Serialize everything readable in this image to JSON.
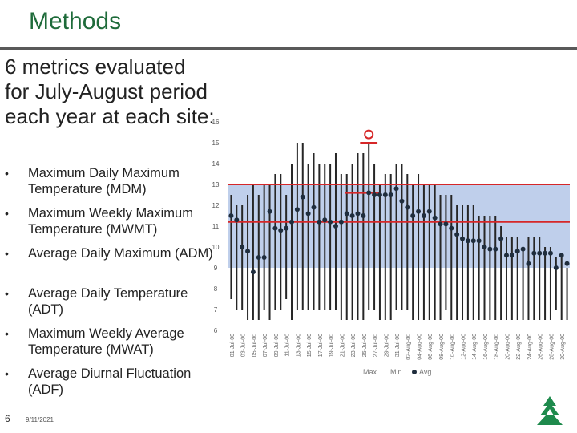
{
  "slide": {
    "title": "Methods",
    "intro": "6 metrics evaluated for July-August period each year at each site:",
    "bullets": [
      "Maximum Daily Maximum Temperature (MDM)",
      "Maximum Weekly Maximum Temperature (MWMT)",
      "Average Daily Maximum (ADM)",
      "Average Daily Temperature (ADT)",
      "Maximum Weekly Average Temperature (MWAT)",
      "Average Diurnal Fluctuation (ADF)"
    ],
    "bullet_symbol": "•",
    "page_number": "6",
    "date": "9/11/2021"
  },
  "colors": {
    "title": "#1e6b3a",
    "band": "#b4c7e7",
    "red": "#d62728",
    "bar": "#262626",
    "logo": "#1e8a4c"
  },
  "chart_data": {
    "type": "bar",
    "ylim": [
      6,
      16
    ],
    "yticks": [
      "6",
      "7",
      "8",
      "9",
      "10",
      "11",
      "12",
      "13",
      "14",
      "15",
      "16"
    ],
    "band_range": [
      9,
      13
    ],
    "threshold_line": 11.2,
    "max_weekly_line": {
      "value": 12.6,
      "start_index": 21,
      "end_index": 27
    },
    "max_marker": {
      "value": 15.4,
      "index": 25
    },
    "peak_line": {
      "value": 15.0,
      "start_index": 24,
      "end_index": 26
    },
    "x_tick_labels": [
      "01-Jul-00",
      "03-Jul-00",
      "05-Jul-00",
      "07-Jul-00",
      "09-Jul-00",
      "11-Jul-00",
      "13-Jul-00",
      "15-Jul-00",
      "17-Jul-00",
      "19-Jul-00",
      "21-Jul-00",
      "23-Jul-00",
      "25-Jul-00",
      "27-Jul-00",
      "29-Jul-00",
      "31-Jul-00",
      "02-Aug-00",
      "04-Aug-00",
      "06-Aug-00",
      "08-Aug-00",
      "10-Aug-00",
      "12-Aug-00",
      "14-Aug-00",
      "16-Aug-00",
      "18-Aug-00",
      "20-Aug-00",
      "22-Aug-00",
      "24-Aug-00",
      "26-Aug-00",
      "28-Aug-00",
      "30-Aug-00"
    ],
    "legend": [
      "Max",
      "Min",
      "Avg"
    ],
    "series": [
      {
        "name": "Max",
        "values": [
          12.5,
          12.0,
          12.0,
          12.5,
          13.0,
          12.5,
          13.0,
          13.0,
          13.5,
          13.5,
          12.5,
          14.0,
          15.0,
          15.0,
          14.0,
          14.5,
          14.0,
          14.0,
          14.0,
          14.5,
          13.5,
          13.5,
          14.0,
          14.5,
          14.5,
          15.0,
          14.0,
          13.0,
          13.5,
          13.5,
          14.0,
          14.0,
          13.5,
          13.0,
          13.5,
          13.0,
          13.0,
          13.0,
          12.5,
          12.5,
          12.5,
          12.0,
          12.0,
          12.0,
          12.0,
          11.5,
          11.5,
          11.5,
          11.5,
          11.0,
          10.5,
          10.5,
          10.5,
          10.0,
          10.5,
          10.5,
          10.5,
          10.0,
          10.0,
          9.5,
          9.5,
          9.0
        ]
      },
      {
        "name": "Min",
        "values": [
          7.5,
          7.0,
          7.0,
          6.5,
          6.5,
          6.5,
          7.0,
          6.5,
          7.0,
          7.0,
          7.5,
          6.5,
          7.0,
          7.0,
          7.0,
          7.0,
          7.0,
          7.0,
          7.0,
          7.0,
          6.5,
          6.5,
          6.5,
          6.5,
          6.5,
          7.0,
          7.0,
          6.5,
          6.5,
          6.5,
          7.0,
          7.0,
          7.0,
          6.5,
          6.5,
          6.5,
          6.5,
          6.5,
          6.5,
          7.0,
          6.5,
          6.5,
          6.5,
          6.5,
          6.5,
          6.5,
          6.5,
          6.5,
          6.5,
          6.5,
          6.5,
          6.5,
          6.5,
          6.5,
          6.5,
          6.5,
          6.5,
          6.5,
          6.5,
          7.0,
          6.5,
          6.5
        ]
      },
      {
        "name": "Avg",
        "values": [
          11.5,
          11.3,
          10.0,
          9.8,
          8.8,
          9.5,
          9.5,
          11.7,
          10.9,
          10.8,
          10.9,
          11.2,
          11.8,
          12.4,
          11.6,
          11.9,
          11.2,
          11.3,
          11.2,
          11.0,
          11.2,
          11.6,
          11.5,
          11.6,
          11.5,
          12.6,
          12.5,
          12.5,
          12.5,
          12.5,
          12.8,
          12.2,
          11.9,
          11.5,
          11.7,
          11.5,
          11.7,
          11.4,
          11.1,
          11.1,
          10.9,
          10.6,
          10.4,
          10.3,
          10.3,
          10.3,
          10.0,
          9.9,
          9.9,
          10.4,
          9.6,
          9.6,
          9.8,
          9.9,
          9.2,
          9.7,
          9.7,
          9.7,
          9.7,
          9.0,
          9.6,
          9.2
        ]
      }
    ]
  }
}
